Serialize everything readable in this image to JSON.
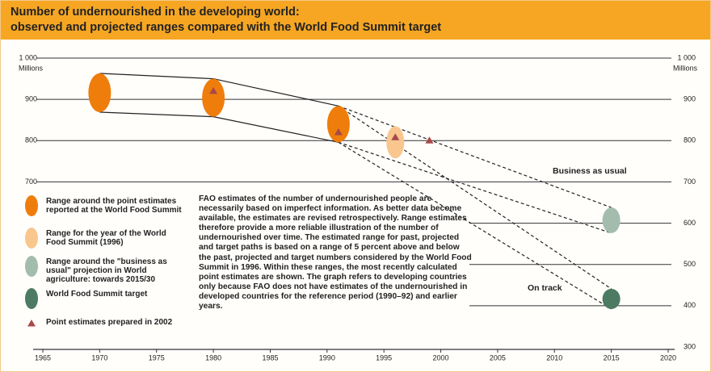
{
  "chart_data": {
    "type": "range",
    "title": "Number of undernourished in the developing world:",
    "subtitle": "observed and projected ranges compared with the World Food Summit target",
    "y_label": "Millions",
    "xlim": [
      1965,
      2020
    ],
    "xticks": [
      1965,
      1970,
      1975,
      1980,
      1985,
      1990,
      1995,
      2000,
      2005,
      2010,
      2015,
      2020
    ],
    "ylim": [
      300,
      1000
    ],
    "yticks": [
      300,
      400,
      500,
      600,
      700,
      800,
      900,
      {
        "value": 1000,
        "label": "1 000"
      }
    ],
    "grid": true,
    "series": [
      {
        "name": "Range around the point estimates reported at the World Food Summit",
        "color": "#ef7d0b",
        "x": [
          1970,
          1980,
          1991
        ],
        "low": [
          869,
          858,
          796
        ],
        "high": [
          963,
          950,
          884
        ]
      },
      {
        "name": "Range for the year of the World Food Summit (1996)",
        "color": "#f9c68e",
        "x": [
          1996
        ],
        "low": [
          757
        ],
        "high": [
          835
        ]
      },
      {
        "name": "Range around the \"business as usual\" projection in World agriculture: towards 2015/30",
        "color": "#a3bcad",
        "x": [
          2015
        ],
        "low": [
          576
        ],
        "high": [
          638
        ]
      },
      {
        "name": "World Food Summit target",
        "color": "#4d7a62",
        "x": [
          2015
        ],
        "low": [
          392
        ],
        "high": [
          441
        ]
      },
      {
        "name": "Point estimates prepared in 2002",
        "color": "#a8494a",
        "x": [
          1980,
          1991,
          1996,
          1999
        ],
        "values": [
          920,
          820,
          808,
          800
        ]
      }
    ],
    "paths": [
      {
        "style": "solid",
        "x": [
          1970,
          1980,
          1991
        ],
        "values": [
          963,
          950,
          884
        ]
      },
      {
        "style": "solid",
        "x": [
          1970,
          1980,
          1991
        ],
        "values": [
          869,
          858,
          796
        ]
      },
      {
        "style": "dashed",
        "x": [
          1991,
          2015
        ],
        "values": [
          884,
          638
        ]
      },
      {
        "style": "dashed",
        "x": [
          1991,
          2015
        ],
        "values": [
          796,
          576
        ]
      },
      {
        "style": "dashed",
        "x": [
          1991,
          2015
        ],
        "values": [
          884,
          441
        ]
      },
      {
        "style": "dashed",
        "x": [
          1991,
          2015
        ],
        "values": [
          796,
          392
        ]
      }
    ],
    "annotations": [
      "Business as usual",
      "On track"
    ],
    "note": "FAO estimates of the number of undernourished people are necessarily based on imperfect information. As better data become available, the estimates are revised retrospectively. Range estimates therefore provide a more reliable illustration of the number of undernourished over time. The estimated range for past, projected and target paths is based on a range of 5 percent above and below the past, projected and target numbers considered by the World Food Summit in 1996. Within these ranges, the most recently calculated point estimates are shown. The graph refers to developing countries only because FAO does not have estimates of the undernourished in developed countries for the reference period (1990–92) and earlier years."
  }
}
